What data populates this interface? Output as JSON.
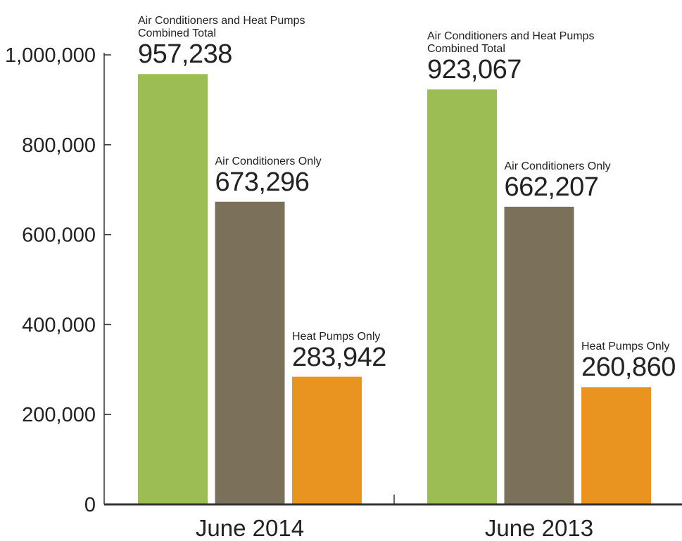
{
  "chart_data": {
    "type": "bar",
    "categories": [
      "June 2014",
      "June 2013"
    ],
    "series": [
      {
        "name": "Air Conditioners and Heat Pumps Combined Total",
        "color": "#9cbd53",
        "values": [
          957238,
          923067
        ],
        "value_labels": [
          "957,238",
          "923,067"
        ]
      },
      {
        "name": "Air Conditioners Only",
        "color": "#7b7059",
        "values": [
          673296,
          662207
        ],
        "value_labels": [
          "673,296",
          "662,207"
        ]
      },
      {
        "name": "Heat Pumps Only",
        "color": "#e99421",
        "values": [
          283942,
          260860
        ],
        "value_labels": [
          "283,942",
          "260,860"
        ]
      }
    ],
    "ylim": [
      0,
      1000000
    ],
    "yticks": [
      0,
      {
        "value": 200000,
        "label": "200,000"
      },
      {
        "value": 400000,
        "label": "400,000"
      },
      {
        "value": 600000,
        "label": "600,000"
      },
      {
        "value": 800000,
        "label": "800,000"
      },
      {
        "value": 1000000,
        "label": "1,000,000"
      }
    ],
    "grid": false
  }
}
